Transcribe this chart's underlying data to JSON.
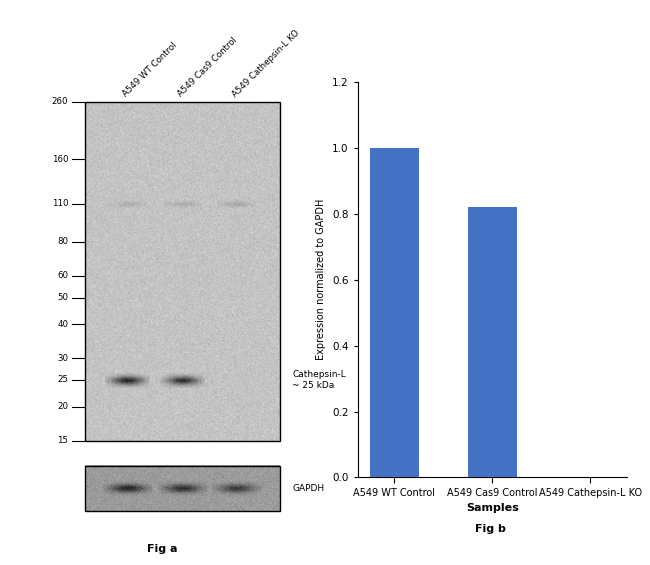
{
  "fig_width": 6.5,
  "fig_height": 5.65,
  "bg_color": "#ffffff",
  "bar_categories": [
    "A549 WT Control",
    "A549 Cas9 Control",
    "A549 Cathepsin-L KO"
  ],
  "bar_values": [
    1.0,
    0.82,
    0.0
  ],
  "bar_color": "#4472C4",
  "bar_ylim": [
    0,
    1.2
  ],
  "bar_yticks": [
    0,
    0.2,
    0.4,
    0.6,
    0.8,
    1.0,
    1.2
  ],
  "bar_ylabel": "Expression normalized to GAPDH",
  "bar_xlabel": "Samples",
  "fig_a_label": "Fig a",
  "fig_b_label": "Fig b",
  "wb_ladder_labels": [
    "260",
    "160",
    "110",
    "80",
    "60",
    "50",
    "40",
    "30",
    "25",
    "20",
    "15"
  ],
  "wb_ladder_values": [
    260,
    160,
    110,
    80,
    60,
    50,
    40,
    30,
    25,
    20,
    15
  ],
  "wb_annotation": "Cathepsin-L\n~ 25 kDa",
  "wb_gapdh_label": "GAPDH",
  "wb_sample_labels": [
    "A549 WT Control",
    "A549 Cas9 Control",
    "A549 Cathepsin-L KO"
  ]
}
